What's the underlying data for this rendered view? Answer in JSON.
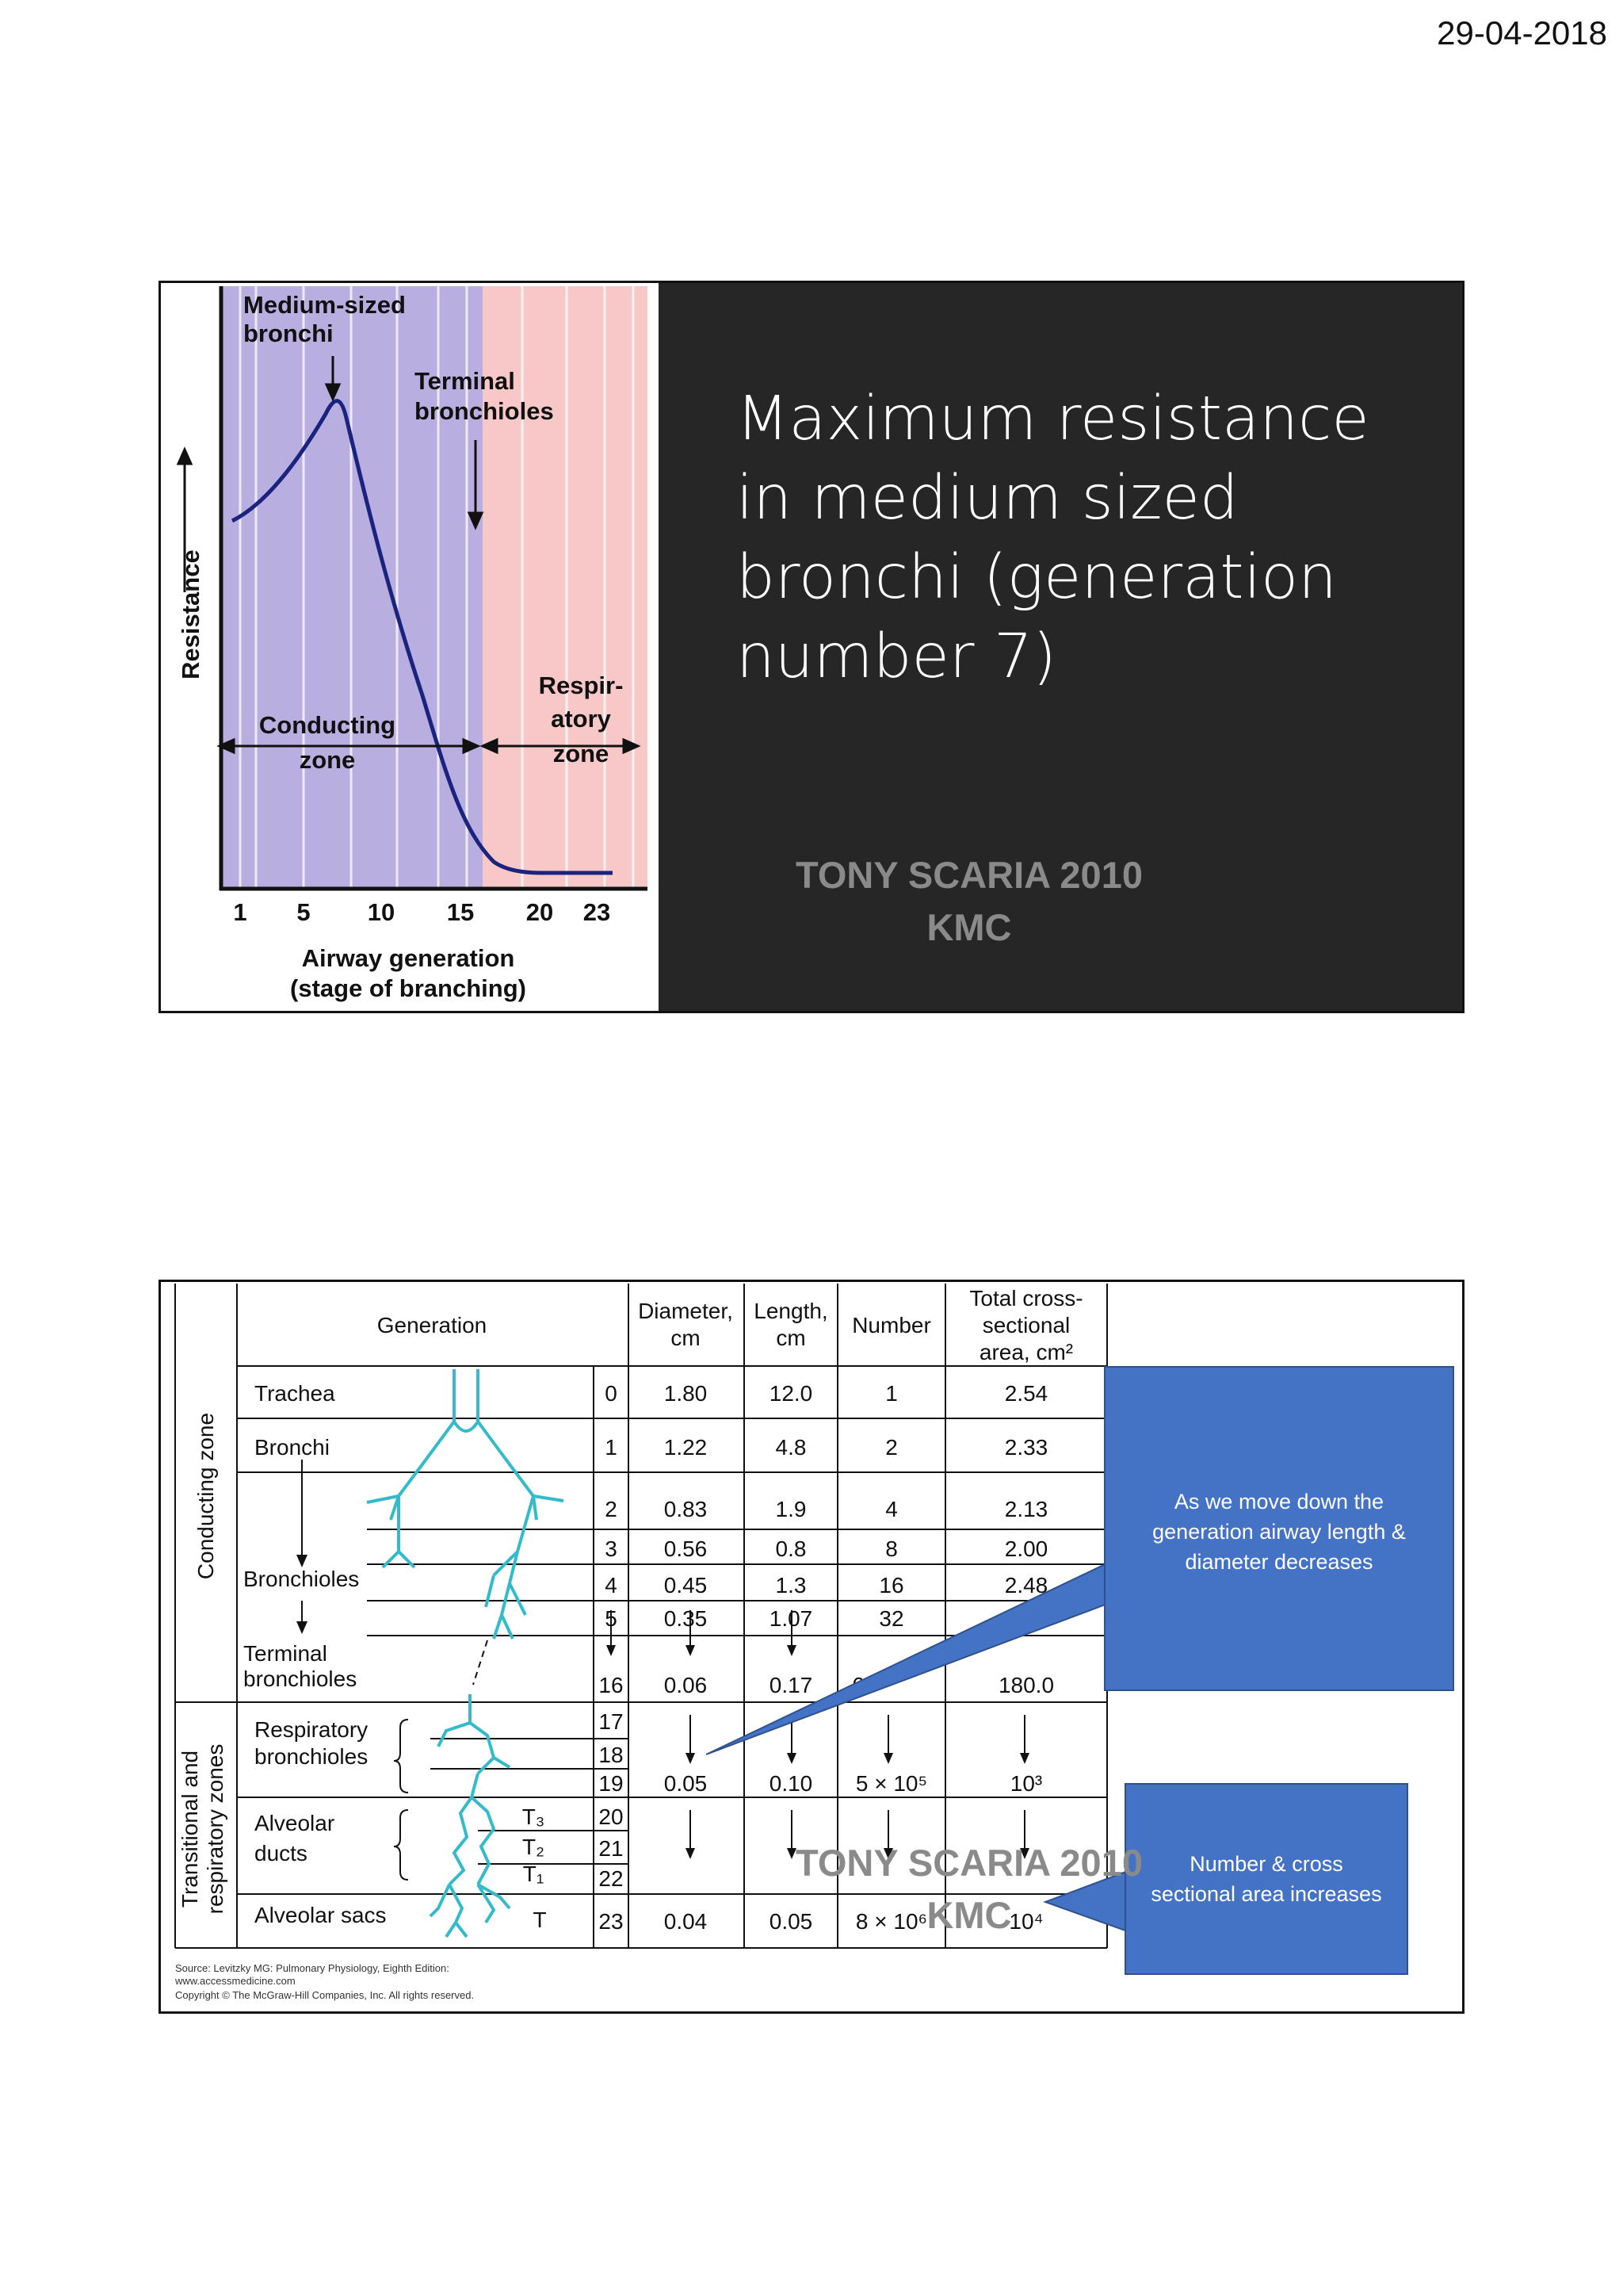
{
  "header": {
    "date": "29-04-2018"
  },
  "slide1": {
    "title": "Maximum resistance in medium sized bronchi (generation number 7)",
    "watermark": {
      "line1": "TONY SCARIA 2010",
      "line2": "KMC"
    },
    "figure": {
      "label_medium": [
        "Medium-sized",
        "bronchi"
      ],
      "label_terminal": [
        "Terminal",
        "bronchioles"
      ],
      "label_respiratory": [
        "Respir-",
        "atory",
        "zone"
      ],
      "label_conducting": [
        "Conducting",
        "zone"
      ],
      "y_label": "Resistance",
      "x_label": [
        "Airway generation",
        "(stage of branching)"
      ],
      "x_ticks": [
        "1",
        "5",
        "10",
        "15",
        "20",
        "23"
      ],
      "colors": {
        "conducting": "#b9aee0",
        "respiratory": "#f8c8c8",
        "curve": "#1a237e"
      }
    }
  },
  "slide2": {
    "headers": {
      "generation": "Generation",
      "diameter": [
        "Diameter,",
        "cm"
      ],
      "length": [
        "Length,",
        "cm"
      ],
      "number": "Number",
      "area": [
        "Total cross-",
        "sectional",
        "area, cm²"
      ]
    },
    "zones": {
      "conducting": "Conducting zone",
      "transitional": [
        "Transitional and",
        "respiratory zones"
      ]
    },
    "rows": [
      {
        "name": "Trachea",
        "sub": "",
        "gen": "0",
        "diameter": "1.80",
        "length": "12.0",
        "number": "1",
        "area": "2.54"
      },
      {
        "name": "Bronchi",
        "sub": "",
        "gen": "1",
        "diameter": "1.22",
        "length": "4.8",
        "number": "2",
        "area": "2.33"
      },
      {
        "name": "",
        "sub": "",
        "gen": "2",
        "diameter": "0.83",
        "length": "1.9",
        "number": "4",
        "area": "2.13"
      },
      {
        "name": "",
        "sub": "",
        "gen": "3",
        "diameter": "0.56",
        "length": "0.8",
        "number": "8",
        "area": "2.00"
      },
      {
        "name": "Bronchioles",
        "sub": "",
        "gen": "4",
        "diameter": "0.45",
        "length": "1.3",
        "number": "16",
        "area": "2.48"
      },
      {
        "name": "",
        "sub": "",
        "gen": "5",
        "diameter": "0.35",
        "length": "1.07",
        "number": "32",
        "area": ""
      },
      {
        "name": "Terminal bronchioles",
        "sub": "",
        "gen": "16",
        "diameter": "0.06",
        "length": "0.17",
        "number": "6",
        "area": "180.0"
      },
      {
        "name": "Respiratory bronchioles",
        "sub": "",
        "gen": "17",
        "diameter": "",
        "length": "",
        "number": "",
        "area": ""
      },
      {
        "name": "",
        "sub": "",
        "gen": "18",
        "diameter": "",
        "length": "",
        "number": "",
        "area": ""
      },
      {
        "name": "",
        "sub": "",
        "gen": "19",
        "diameter": "0.05",
        "length": "0.10",
        "number": "5 × 10⁵",
        "area": "10³"
      },
      {
        "name": "Alveolar ducts",
        "sub": "T₃",
        "gen": "20",
        "diameter": "",
        "length": "",
        "number": "",
        "area": ""
      },
      {
        "name": "",
        "sub": "T₂",
        "gen": "21",
        "diameter": "",
        "length": "",
        "number": "",
        "area": ""
      },
      {
        "name": "",
        "sub": "T₁",
        "gen": "22",
        "diameter": "",
        "length": "",
        "number": "",
        "area": ""
      },
      {
        "name": "Alveolar sacs",
        "sub": "T",
        "gen": "23",
        "diameter": "0.04",
        "length": "0.05",
        "number": "8 × 10⁶",
        "area": "10⁴"
      }
    ],
    "source": {
      "line1": "Source: Levitzky MG: Pulmonary Physiology, Eighth Edition:",
      "line2": "www.accessmedicine.com",
      "line3": "Copyright © The McGraw-Hill Companies, Inc. All rights reserved."
    },
    "callout1": "As we move down the generation airway length & diameter decreases",
    "callout2": "Number & cross sectional area increases",
    "watermark": {
      "line1": "TONY SCARIA 2010",
      "line2": "KMC"
    },
    "colors": {
      "callout": "#4472c4",
      "tree": "#33bbcc"
    }
  }
}
